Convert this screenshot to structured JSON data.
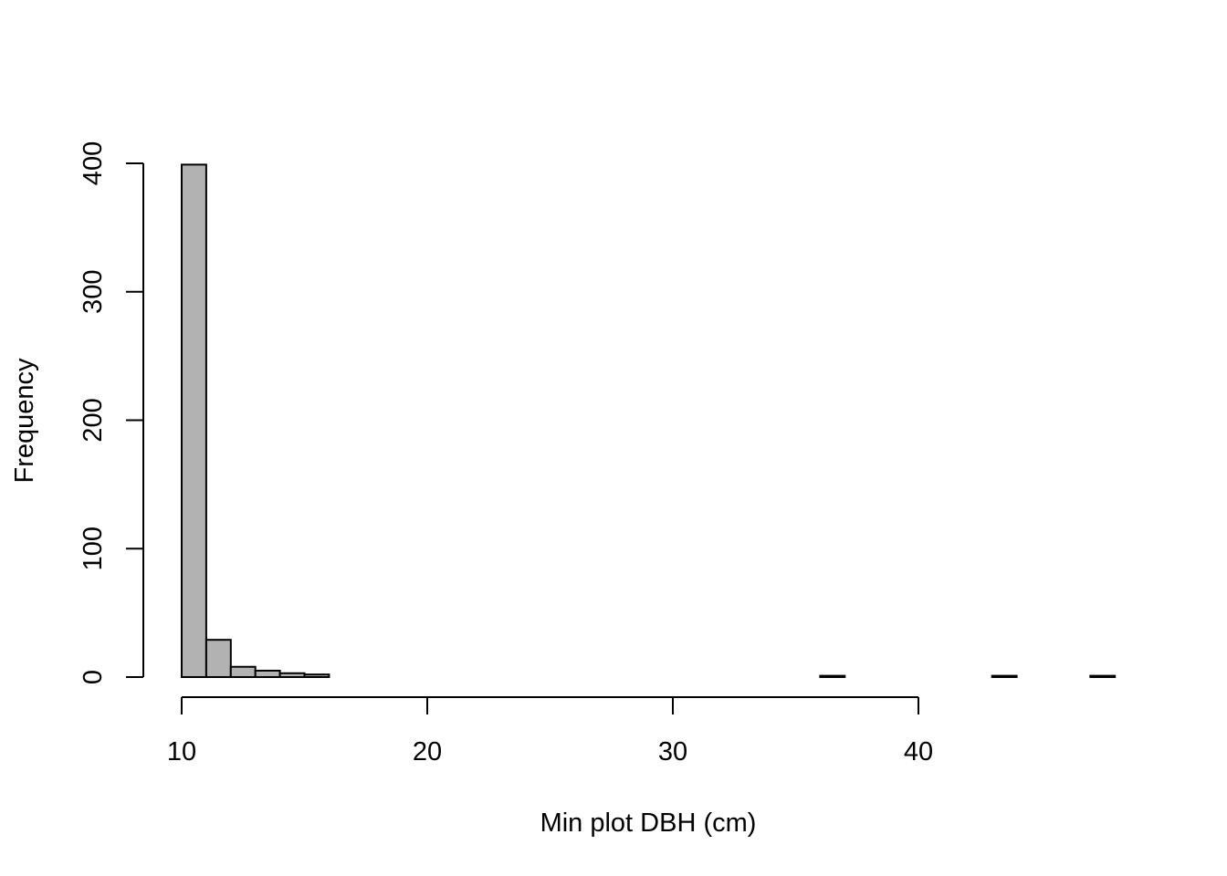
{
  "chart_data": {
    "type": "histogram",
    "title": "",
    "xlabel": "Min plot DBH (cm)",
    "ylabel": "Frequency",
    "bin_width": 1,
    "bins": [
      {
        "start": 10,
        "end": 11,
        "count": 399
      },
      {
        "start": 11,
        "end": 12,
        "count": 29
      },
      {
        "start": 12,
        "end": 13,
        "count": 8
      },
      {
        "start": 13,
        "end": 14,
        "count": 5
      },
      {
        "start": 14,
        "end": 15,
        "count": 3
      },
      {
        "start": 15,
        "end": 16,
        "count": 2
      },
      {
        "start": 16,
        "end": 17,
        "count": 0
      },
      {
        "start": 17,
        "end": 18,
        "count": 0
      },
      {
        "start": 18,
        "end": 19,
        "count": 0
      },
      {
        "start": 19,
        "end": 20,
        "count": 0
      },
      {
        "start": 20,
        "end": 21,
        "count": 0
      },
      {
        "start": 21,
        "end": 22,
        "count": 0
      },
      {
        "start": 22,
        "end": 23,
        "count": 0
      },
      {
        "start": 23,
        "end": 24,
        "count": 0
      },
      {
        "start": 24,
        "end": 25,
        "count": 0
      },
      {
        "start": 25,
        "end": 26,
        "count": 0
      },
      {
        "start": 26,
        "end": 27,
        "count": 0
      },
      {
        "start": 27,
        "end": 28,
        "count": 0
      },
      {
        "start": 28,
        "end": 29,
        "count": 0
      },
      {
        "start": 29,
        "end": 30,
        "count": 0
      },
      {
        "start": 30,
        "end": 31,
        "count": 0
      },
      {
        "start": 31,
        "end": 32,
        "count": 0
      },
      {
        "start": 32,
        "end": 33,
        "count": 0
      },
      {
        "start": 33,
        "end": 34,
        "count": 0
      },
      {
        "start": 34,
        "end": 35,
        "count": 0
      },
      {
        "start": 35,
        "end": 36,
        "count": 0
      },
      {
        "start": 36,
        "end": 37,
        "count": 1
      },
      {
        "start": 37,
        "end": 38,
        "count": 0
      },
      {
        "start": 38,
        "end": 39,
        "count": 0
      },
      {
        "start": 39,
        "end": 40,
        "count": 0
      },
      {
        "start": 40,
        "end": 41,
        "count": 0
      },
      {
        "start": 41,
        "end": 42,
        "count": 0
      },
      {
        "start": 42,
        "end": 43,
        "count": 0
      },
      {
        "start": 43,
        "end": 44,
        "count": 1
      },
      {
        "start": 44,
        "end": 45,
        "count": 0
      },
      {
        "start": 45,
        "end": 46,
        "count": 0
      },
      {
        "start": 46,
        "end": 47,
        "count": 0
      },
      {
        "start": 47,
        "end": 48,
        "count": 1
      }
    ],
    "x_ticks": [
      10,
      20,
      30,
      40
    ],
    "y_ticks": [
      0,
      100,
      200,
      300,
      400
    ],
    "xlim": [
      10,
      48
    ],
    "ylim": [
      0,
      400
    ],
    "grid": false,
    "legend": "none",
    "bar_color": "#b2b2b2",
    "edge_color": "#000000"
  }
}
